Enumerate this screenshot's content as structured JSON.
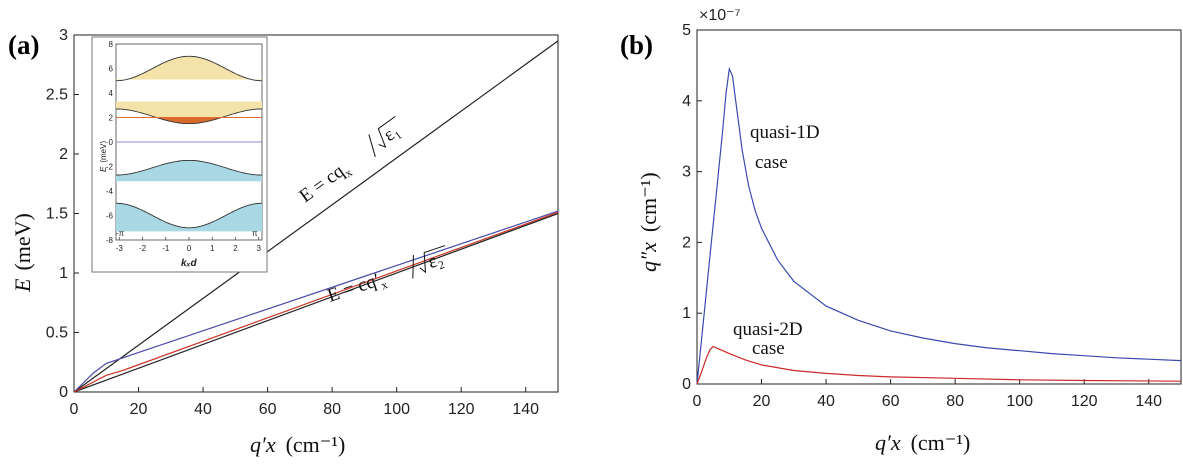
{
  "chart_data": [
    {
      "panel": "(a)",
      "type": "line",
      "xlabel_var": "q′x",
      "xlabel_unit": "(cm⁻¹)",
      "ylabel_var": "E",
      "ylabel_unit": "(meV)",
      "xlim": [
        0,
        150
      ],
      "ylim": [
        0,
        3
      ],
      "xticks": [
        0,
        20,
        40,
        60,
        80,
        100,
        120,
        140
      ],
      "yticks": [
        0,
        0.5,
        1,
        1.5,
        2,
        2.5,
        3
      ],
      "ytick_labels": [
        "0",
        "0.5",
        "1",
        "1.5",
        "2",
        "2.5",
        "3"
      ],
      "series": [
        {
          "color": "#222222",
          "x": [
            0,
            150
          ],
          "y": [
            0,
            2.95
          ]
        },
        {
          "color": "#222222",
          "x": [
            0,
            150
          ],
          "y": [
            0,
            1.5
          ]
        },
        {
          "color": "#4a4aa8",
          "x": [
            0,
            3,
            6,
            10,
            150
          ],
          "y": [
            0,
            0.08,
            0.16,
            0.24,
            1.52
          ]
        },
        {
          "color": "#cc3322",
          "x": [
            0,
            5,
            10,
            15,
            150
          ],
          "y": [
            0,
            0.07,
            0.14,
            0.18,
            1.51
          ]
        }
      ],
      "annotations": [
        {
          "text": "E = cq/√ε₁",
          "text_main": "E = cq",
          "sub": "x",
          "sqrt": "ε₁"
        },
        {
          "text": "E = cq′x/√ε₂",
          "text_main": "E = cq′",
          "sub": "x",
          "sqrt": "ε₂"
        }
      ],
      "inset": {
        "type": "band-structure",
        "xlabel": "kₓd",
        "ylabel_var": "E",
        "ylabel_unit": "(meV)",
        "xlim": [
          -3.1416,
          3.1416
        ],
        "ylim": [
          -8,
          8
        ],
        "xticks": [
          -3,
          -2,
          -1,
          0,
          1,
          2,
          3
        ],
        "yticks": [
          8,
          6,
          4,
          2,
          0,
          -2,
          -4,
          -6,
          -8
        ],
        "pi_labels": [
          "-π",
          "π"
        ],
        "bands": [
          {
            "offset": 6.0,
            "amp": 1.0,
            "fill_to": 5.1,
            "fill": "#f3e3a8"
          },
          {
            "offset": 2.1,
            "amp": -0.6,
            "fill_to": 3.3,
            "fill": "#f3e3a8"
          },
          {
            "offset": -2.1,
            "amp": 0.6,
            "fill_to": -3.2,
            "fill": "#a8d8e4"
          },
          {
            "offset": -6.0,
            "amp": -1.0,
            "fill_to": -7.3,
            "fill": "#a8d8e4"
          }
        ],
        "hlines": [
          {
            "y": 2.0,
            "color": "#e06a3a"
          },
          {
            "y": 0.0,
            "color": "#8a8ad0"
          }
        ],
        "dip_fill": "#d86a2a"
      }
    },
    {
      "panel": "(b)",
      "type": "line",
      "xlabel_var": "q′x",
      "xlabel_unit": "(cm⁻¹)",
      "ylabel_var": "q″x",
      "ylabel_unit": "(cm⁻¹)",
      "scale_label": "×10⁻⁷",
      "xlim": [
        0,
        150
      ],
      "ylim": [
        0,
        5
      ],
      "xticks": [
        0,
        20,
        40,
        60,
        80,
        100,
        120,
        140
      ],
      "yticks": [
        0,
        1,
        2,
        3,
        4,
        5
      ],
      "series": [
        {
          "color": "#3a4ab0",
          "x": [
            0,
            2,
            4,
            6,
            8,
            9,
            10,
            11,
            12,
            14,
            16,
            18,
            20,
            25,
            30,
            40,
            50,
            60,
            70,
            80,
            90,
            100,
            110,
            120,
            130,
            140,
            150
          ],
          "y": [
            0,
            0.9,
            1.8,
            2.7,
            3.6,
            4.1,
            4.45,
            4.35,
            4.0,
            3.3,
            2.8,
            2.45,
            2.2,
            1.75,
            1.45,
            1.1,
            0.9,
            0.75,
            0.65,
            0.57,
            0.51,
            0.47,
            0.43,
            0.4,
            0.37,
            0.35,
            0.33
          ]
        },
        {
          "color": "#cc2a2a",
          "x": [
            0,
            1,
            2,
            3,
            4,
            5,
            6,
            8,
            10,
            15,
            20,
            30,
            40,
            50,
            60,
            80,
            100,
            120,
            150
          ],
          "y": [
            0,
            0.12,
            0.25,
            0.38,
            0.48,
            0.53,
            0.51,
            0.47,
            0.43,
            0.34,
            0.27,
            0.19,
            0.15,
            0.12,
            0.1,
            0.08,
            0.06,
            0.05,
            0.04
          ]
        }
      ],
      "annotations": [
        {
          "text1": "quasi-1D",
          "text2": "case"
        },
        {
          "text1": "quasi-2D",
          "text2": "case"
        }
      ]
    }
  ]
}
